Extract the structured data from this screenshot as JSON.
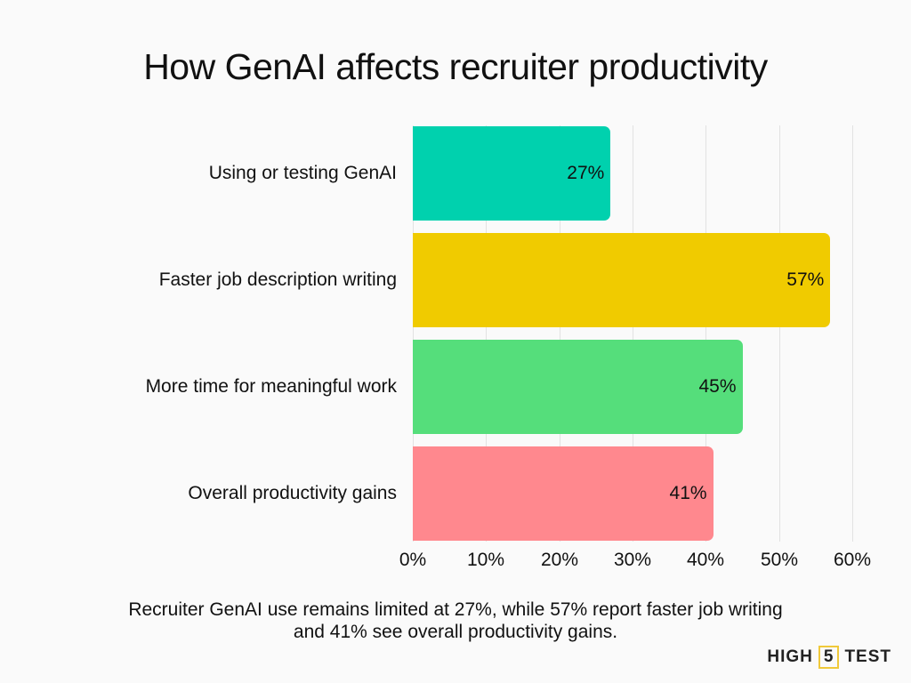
{
  "title": "How GenAI affects recruiter productivity",
  "caption": {
    "line1": "Recruiter GenAI use remains limited at 27%, while 57% report faster job writing",
    "line2": "and 41% see overall productivity gains."
  },
  "logo": {
    "left": "HIGH",
    "middle": "5",
    "right": "TEST",
    "accent": "#f0c93a"
  },
  "axis": {
    "ticks": [
      "0%",
      "10%",
      "20%",
      "30%",
      "40%",
      "50%",
      "60%"
    ]
  },
  "bars": [
    {
      "label": "Using or testing GenAI",
      "value": 27,
      "display": "27%",
      "color": "#00d1ae"
    },
    {
      "label": "Faster job description writing",
      "value": 57,
      "display": "57%",
      "color": "#f0cb00"
    },
    {
      "label": "More time for meaningful work",
      "value": 45,
      "display": "45%",
      "color": "#55de7b"
    },
    {
      "label": "Overall productivity gains",
      "value": 41,
      "display": "41%",
      "color": "#ff888e"
    }
  ],
  "chart_data": {
    "type": "bar",
    "orientation": "horizontal",
    "title": "How GenAI affects recruiter productivity",
    "categories": [
      "Using or testing GenAI",
      "Faster job description writing",
      "More time for meaningful work",
      "Overall productivity gains"
    ],
    "values": [
      27,
      57,
      45,
      41
    ],
    "value_labels": [
      "27%",
      "57%",
      "45%",
      "41%"
    ],
    "colors": [
      "#00d1ae",
      "#f0cb00",
      "#55de7b",
      "#ff888e"
    ],
    "xlabel": "",
    "ylabel": "",
    "xlim": [
      0,
      60
    ],
    "x_ticks": [
      "0%",
      "10%",
      "20%",
      "30%",
      "40%",
      "50%",
      "60%"
    ],
    "grid": "vertical",
    "legend": "none",
    "annotation": "Recruiter GenAI use remains limited at 27%, while 57% report faster job writing and 41% see overall productivity gains."
  }
}
